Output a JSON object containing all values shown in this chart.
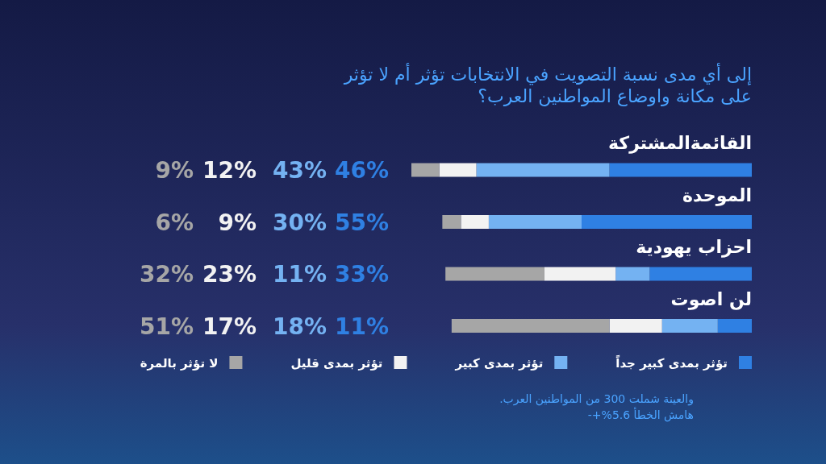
{
  "chart_data": {
    "type": "bar",
    "orientation": "horizontal",
    "stacked": true,
    "title": "إلى أي مدى نسبة التصويت في الانتخابات تؤثر أم لا تؤثر على مكانة واوضاع المواطنين العرب؟",
    "categories": [
      "القائمةالمشتركة",
      "الموحدة",
      "احزاب يهودية",
      "لن اصوت"
    ],
    "series": [
      {
        "name": "تؤثر بمدى كبير جداً",
        "color": "#2f80e3",
        "values": [
          46,
          55,
          33,
          11
        ],
        "value_labels": [
          "46%",
          "55%",
          "33%",
          "11%"
        ]
      },
      {
        "name": "تؤثر بمدى كبير",
        "color": "#74b2f2",
        "values": [
          43,
          30,
          11,
          18
        ],
        "value_labels": [
          "43%",
          "30%",
          "11%",
          "18%"
        ]
      },
      {
        "name": "تؤثر بمدى قليل",
        "color": "#f2f2f2",
        "values": [
          12,
          9,
          23,
          17
        ],
        "value_labels": [
          "12%",
          "9%",
          "23%",
          "17%"
        ]
      },
      {
        "name": "لا تؤثر بالمرة",
        "color": "#a6a6a6",
        "values": [
          9,
          6,
          32,
          51
        ],
        "value_labels": [
          "9%",
          "6%",
          "32%",
          "51%"
        ]
      }
    ],
    "legend": "bottom",
    "annotations": [
      "والعينة شملت 300 من المواطنين العرب.",
      "هامش الخطأ 5.6%+-"
    ]
  }
}
